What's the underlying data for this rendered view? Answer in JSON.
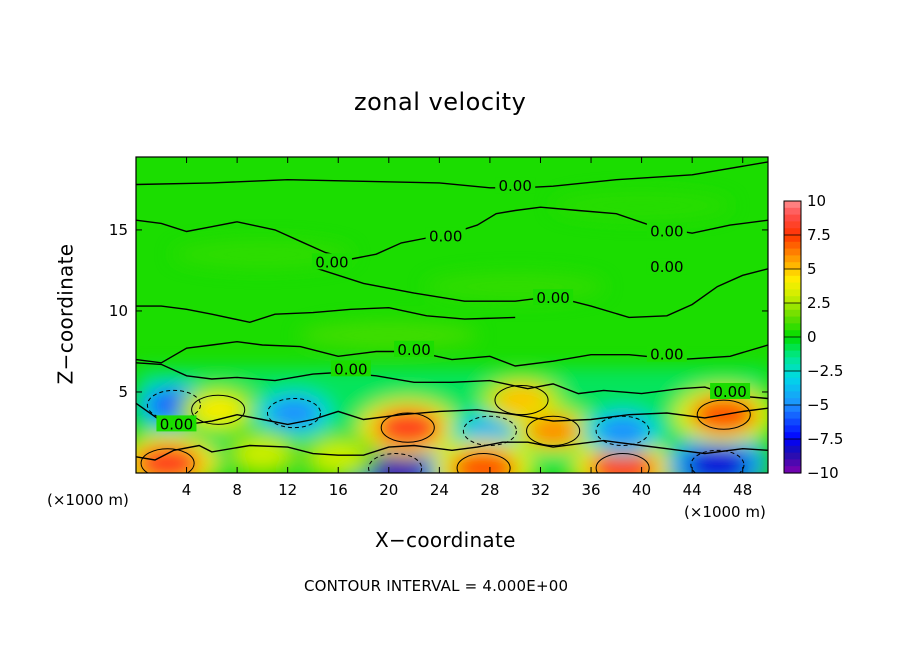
{
  "chart_data": {
    "type": "heatmap",
    "title": "zonal velocity",
    "xlabel": "X−coordinate",
    "ylabel": "Z−coordinate",
    "x_unit": "(×1000 m)",
    "z_unit": "(×1000 m)",
    "xlim": [
      0,
      50
    ],
    "ylim": [
      0,
      19.5
    ],
    "x_ticks": [
      4,
      8,
      12,
      16,
      20,
      24,
      28,
      32,
      36,
      40,
      44,
      48
    ],
    "y_ticks": [
      5,
      10,
      15
    ],
    "colorbar": {
      "min": -10,
      "max": 10,
      "ticks": [
        "10",
        "7.5",
        "5",
        "2.5",
        "0",
        "−2.5",
        "−5",
        "−7.5",
        "−10"
      ]
    },
    "contour_interval_text": "CONTOUR INTERVAL = 4.000E+00",
    "contour_label": "0.00",
    "contour_label_positions": [
      [
        30,
        17.7
      ],
      [
        24.5,
        14.6
      ],
      [
        15.5,
        13.0
      ],
      [
        42,
        14.9
      ],
      [
        42,
        12.7
      ],
      [
        33,
        10.8
      ],
      [
        22,
        7.6
      ],
      [
        17,
        6.4
      ],
      [
        42,
        7.3
      ],
      [
        47,
        5.0
      ],
      [
        3.2,
        3.0
      ]
    ],
    "features": [
      {
        "x": 2.5,
        "z": 0.6,
        "value": 8
      },
      {
        "x": 3.0,
        "z": 4.2,
        "value": -6
      },
      {
        "x": 6.5,
        "z": 3.9,
        "value": 4
      },
      {
        "x": 12.5,
        "z": 3.7,
        "value": -5
      },
      {
        "x": 20.5,
        "z": 0.3,
        "value": -9
      },
      {
        "x": 21.5,
        "z": 2.8,
        "value": 8
      },
      {
        "x": 28.0,
        "z": 2.6,
        "value": -4
      },
      {
        "x": 27.5,
        "z": 0.3,
        "value": 7
      },
      {
        "x": 30.5,
        "z": 4.5,
        "value": 5
      },
      {
        "x": 33.0,
        "z": 2.6,
        "value": 6
      },
      {
        "x": 38.5,
        "z": 0.3,
        "value": 8
      },
      {
        "x": 38.5,
        "z": 2.6,
        "value": -5
      },
      {
        "x": 46.0,
        "z": 0.5,
        "value": -8
      },
      {
        "x": 46.5,
        "z": 3.6,
        "value": 7
      },
      {
        "x": 10.0,
        "z": 1.2,
        "value": 3
      },
      {
        "x": 16.0,
        "z": 1.0,
        "value": 3
      }
    ]
  }
}
